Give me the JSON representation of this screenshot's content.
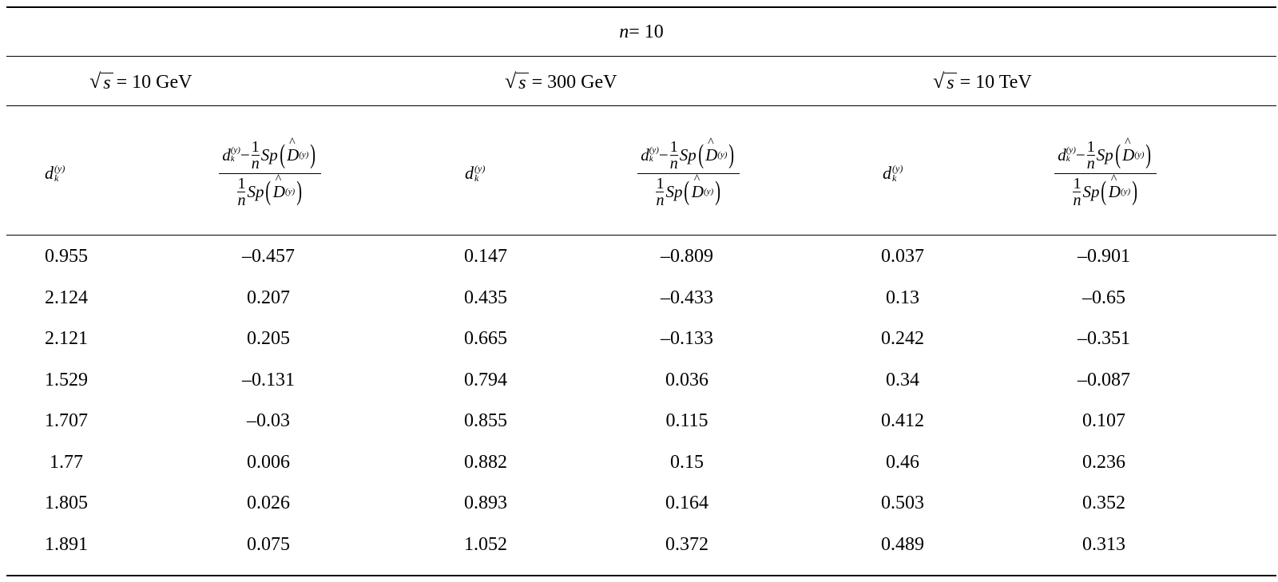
{
  "table": {
    "title_var": "n",
    "title_rest": " = 10",
    "energies": [
      {
        "value": "= 10 GeV"
      },
      {
        "value": "= 300 GeV"
      },
      {
        "value": "= 10 TeV"
      }
    ],
    "sqrt_arg": "s",
    "col_d": "d",
    "col_d_sup": "(y)",
    "col_d_sub": "k",
    "rows": [
      [
        "0.955",
        "–0.457",
        "0.147",
        "–0.809",
        "0.037",
        "–0.901"
      ],
      [
        "2.124",
        "0.207",
        "0.435",
        "–0.433",
        "0.13",
        "–0.65"
      ],
      [
        "2.121",
        "0.205",
        "0.665",
        "–0.133",
        "0.242",
        "–0.351"
      ],
      [
        "1.529",
        "–0.131",
        "0.794",
        "0.036",
        "0.34",
        "–0.087"
      ],
      [
        "1.707",
        "–0.03",
        "0.855",
        "0.115",
        "0.412",
        "0.107"
      ],
      [
        "1.77",
        "0.006",
        "0.882",
        "0.15",
        "0.46",
        "0.236"
      ],
      [
        "1.805",
        "0.026",
        "0.893",
        "0.164",
        "0.503",
        "0.352"
      ],
      [
        "1.891",
        "0.075",
        "1.052",
        "0.372",
        "0.489",
        "0.313"
      ]
    ]
  }
}
